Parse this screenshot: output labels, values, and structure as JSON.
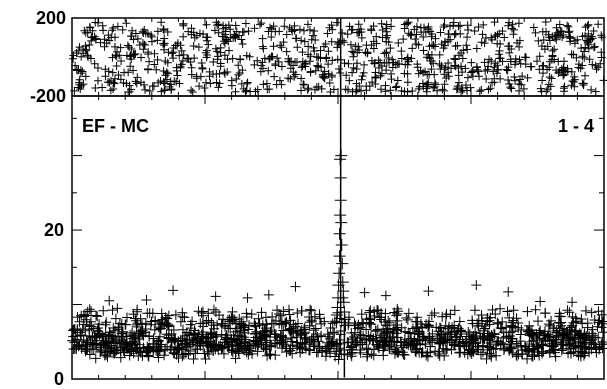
{
  "chart_data": [
    {
      "type": "scatter",
      "panel": "residuals",
      "title": "",
      "xlabel": "",
      "ylabel": "",
      "ylim": [
        -200,
        200
      ],
      "xlim": [
        0,
        1
      ],
      "yticks": [
        {
          "value": 200,
          "label": "200"
        },
        {
          "value": -200,
          "label": "-200"
        }
      ],
      "marker": "plus",
      "color": "#000000",
      "points_description_free": true,
      "noise": {
        "center": 0,
        "spread": 180,
        "n": 950
      }
    },
    {
      "type": "scatter",
      "panel": "main",
      "title": "",
      "xlabel": "",
      "ylabel": "",
      "ylim": [
        0,
        38
      ],
      "xlim": [
        0,
        1
      ],
      "yticks": [
        {
          "value": 20,
          "label": "20"
        },
        {
          "value": 0,
          "label": "0"
        }
      ],
      "annotations": {
        "left": "EF - MC",
        "right": "1 - 4"
      },
      "marker": "plus",
      "color": "#000000",
      "baseline": {
        "mean": 3.5,
        "spread": 3.2,
        "n": 1400
      },
      "outliers": [
        [
          0.07,
          10.5
        ],
        [
          0.19,
          11.9
        ],
        [
          0.27,
          11.1
        ],
        [
          0.37,
          11.3
        ],
        [
          0.42,
          12.4
        ],
        [
          0.51,
          10.9
        ],
        [
          0.55,
          11.6
        ],
        [
          0.59,
          11.2
        ],
        [
          0.67,
          11.8
        ],
        [
          0.76,
          12.6
        ],
        [
          0.82,
          11.7
        ],
        [
          0.94,
          10.3
        ],
        [
          0.14,
          10.6
        ],
        [
          0.33,
          10.9
        ],
        [
          0.88,
          10.4
        ]
      ],
      "peak": {
        "x": 0.505,
        "points": [
          [
            0.505,
            38.0
          ],
          [
            0.506,
            30.0
          ],
          [
            0.504,
            29.5
          ],
          [
            0.505,
            27.0
          ],
          [
            0.505,
            24.0
          ],
          [
            0.504,
            22.0
          ],
          [
            0.506,
            21.0
          ],
          [
            0.503,
            19.5
          ],
          [
            0.507,
            18.0
          ],
          [
            0.503,
            16.5
          ],
          [
            0.508,
            15.5
          ],
          [
            0.502,
            14.2
          ],
          [
            0.509,
            13.0
          ],
          [
            0.501,
            12.6
          ],
          [
            0.51,
            11.8
          ],
          [
            0.5,
            10.9
          ],
          [
            0.511,
            10.3
          ],
          [
            0.499,
            9.6
          ],
          [
            0.512,
            9.0
          ],
          [
            0.498,
            8.6
          ],
          [
            0.513,
            8.0
          ],
          [
            0.497,
            7.6
          ],
          [
            0.514,
            7.2
          ]
        ]
      },
      "dip": {
        "x": 0.512,
        "width": 0.004
      }
    }
  ]
}
